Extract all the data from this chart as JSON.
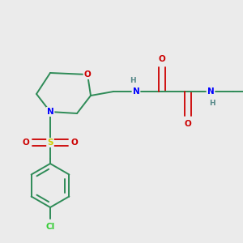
{
  "bg_color": "#ebebeb",
  "colors": {
    "C": "#2e8b57",
    "N": "#0000ff",
    "O": "#cc0000",
    "S": "#cccc00",
    "Cl": "#33cc33",
    "H": "#558888"
  },
  "bond_color": "#2e8b57",
  "figsize": [
    3.0,
    3.0
  ],
  "dpi": 100
}
